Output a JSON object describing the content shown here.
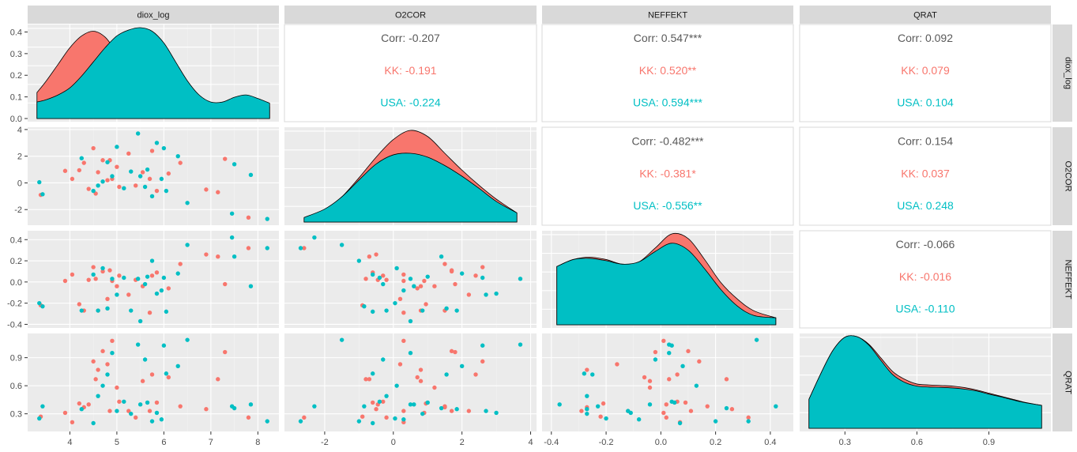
{
  "colors": {
    "panel_bg": "#EBEBEB",
    "grid_major": "#FFFFFF",
    "strip_bg": "#D9D9D9",
    "corr_overall": "#595959",
    "KK": "#F8766D",
    "USA": "#00BFC4",
    "density_stroke": "#000000"
  },
  "strips": {
    "col": [
      "diox_log",
      "O2COR",
      "NEFFEKT",
      "QRAT"
    ],
    "row": [
      "diox_log",
      "O2COR",
      "NEFFEKT",
      "QRAT"
    ]
  },
  "axes": {
    "x_ticks": [
      [
        "4",
        "5",
        "6",
        "7",
        "8"
      ],
      [
        "-2",
        "0",
        "2",
        "4"
      ],
      [
        "-0.4",
        "-0.2",
        "0.0",
        "0.2",
        "0.4"
      ],
      [
        "0.3",
        "0.6",
        "0.9"
      ]
    ],
    "y_ticks": [
      [
        "0.0",
        "0.1",
        "0.2",
        "0.3",
        "0.4"
      ],
      [
        "-2",
        "0",
        "2",
        "4"
      ],
      [
        "-0.4",
        "-0.2",
        "0.0",
        "0.2",
        "0.4"
      ],
      [
        "0.3",
        "0.6",
        "0.9"
      ]
    ]
  },
  "chart_data": {
    "type": "scatter",
    "variables": [
      "diox_log",
      "O2COR",
      "NEFFEKT",
      "QRAT"
    ],
    "groups": [
      "KK",
      "USA"
    ],
    "ranges": [
      [
        3.3,
        8.25
      ],
      [
        -2.9,
        3.9
      ],
      [
        -0.4,
        0.45
      ],
      [
        0.15,
        1.12
      ]
    ],
    "correlations": {
      "0-1": {
        "Corr": "Corr: -0.207",
        "KK": "KK: -0.191",
        "USA": "USA: -0.224"
      },
      "0-2": {
        "Corr": "Corr: 0.547***",
        "KK": "KK: 0.520**",
        "USA": "USA: 0.594***"
      },
      "0-3": {
        "Corr": "Corr: 0.092",
        "KK": "KK: 0.079",
        "USA": "USA: 0.104"
      },
      "1-2": {
        "Corr": "Corr: -0.482***",
        "KK": "KK: -0.381*",
        "USA": "USA: -0.556**"
      },
      "1-3": {
        "Corr": "Corr: 0.154",
        "KK": "KK: 0.037",
        "USA": "USA: 0.248"
      },
      "2-3": {
        "Corr": "Corr: -0.066",
        "KK": "KK: -0.016",
        "USA": "USA: -0.110"
      }
    },
    "densities": {
      "diox_log": {
        "x": [
          3.3,
          3.5,
          3.75,
          4.0,
          4.25,
          4.5,
          4.75,
          5.0,
          5.25,
          5.5,
          5.75,
          6.0,
          6.25,
          6.5,
          6.75,
          7.0,
          7.25,
          7.5,
          7.75,
          8.0,
          8.25
        ],
        "KK": [
          0.11,
          0.16,
          0.23,
          0.3,
          0.35,
          0.37,
          0.345,
          0.28,
          0.22,
          0.17,
          0.14,
          0.11,
          0.08,
          0.06,
          0.055,
          0.06,
          0.07,
          0.08,
          0.075,
          0.06,
          0.05
        ],
        "USA": [
          0.07,
          0.08,
          0.1,
          0.13,
          0.18,
          0.24,
          0.3,
          0.35,
          0.375,
          0.385,
          0.37,
          0.32,
          0.24,
          0.16,
          0.1,
          0.07,
          0.07,
          0.09,
          0.1,
          0.085,
          0.065
        ]
      },
      "O2COR": {
        "x": [
          -2.6,
          -2.0,
          -1.5,
          -1.0,
          -0.5,
          0.0,
          0.5,
          1.0,
          1.5,
          2.0,
          2.5,
          3.0,
          3.6
        ],
        "KK": [
          0.05,
          0.15,
          0.33,
          0.58,
          0.85,
          1.08,
          1.2,
          1.12,
          0.9,
          0.68,
          0.48,
          0.3,
          0.12
        ],
        "USA": [
          0.06,
          0.17,
          0.33,
          0.55,
          0.76,
          0.88,
          0.9,
          0.85,
          0.74,
          0.6,
          0.44,
          0.27,
          0.12
        ]
      },
      "NEFFEKT": {
        "x": [
          -0.38,
          -0.32,
          -0.26,
          -0.2,
          -0.14,
          -0.08,
          -0.02,
          0.04,
          0.1,
          0.16,
          0.22,
          0.28,
          0.34,
          0.42
        ],
        "KK": [
          0.5,
          0.56,
          0.58,
          0.56,
          0.52,
          0.54,
          0.66,
          0.78,
          0.74,
          0.56,
          0.36,
          0.22,
          0.12,
          0.06
        ],
        "USA": [
          0.5,
          0.56,
          0.57,
          0.55,
          0.52,
          0.54,
          0.63,
          0.7,
          0.64,
          0.48,
          0.3,
          0.16,
          0.08,
          0.06
        ]
      },
      "QRAT": {
        "x": [
          0.15,
          0.2,
          0.25,
          0.3,
          0.35,
          0.4,
          0.45,
          0.5,
          0.55,
          0.6,
          0.65,
          0.7,
          0.75,
          0.8,
          0.85,
          0.9,
          0.95,
          1.0,
          1.05,
          1.12
        ],
        "KK": [
          0.95,
          1.8,
          2.55,
          2.98,
          3.0,
          2.75,
          2.3,
          1.85,
          1.6,
          1.45,
          1.42,
          1.4,
          1.38,
          1.33,
          1.25,
          1.15,
          1.05,
          0.95,
          0.85,
          0.75
        ],
        "USA": [
          0.95,
          1.8,
          2.55,
          2.98,
          3.0,
          2.72,
          2.22,
          1.75,
          1.5,
          1.38,
          1.35,
          1.34,
          1.32,
          1.28,
          1.22,
          1.12,
          1.03,
          0.93,
          0.84,
          0.75
        ]
      }
    },
    "points": [
      {
        "g": "KK",
        "v": [
          3.38,
          -0.9,
          -0.22,
          0.27
        ]
      },
      {
        "g": "KK",
        "v": [
          3.9,
          0.9,
          0.01,
          0.31
        ]
      },
      {
        "g": "KK",
        "v": [
          4.05,
          0.3,
          0.07,
          0.21
        ]
      },
      {
        "g": "KK",
        "v": [
          4.2,
          0.95,
          -0.21,
          0.41
        ]
      },
      {
        "g": "KK",
        "v": [
          4.3,
          1.5,
          -0.27,
          0.37
        ]
      },
      {
        "g": "KK",
        "v": [
          4.4,
          -0.45,
          0.02,
          0.4
        ]
      },
      {
        "g": "KK",
        "v": [
          4.5,
          2.6,
          0.14,
          0.86
        ]
      },
      {
        "g": "KK",
        "v": [
          4.55,
          -0.8,
          0.03,
          0.67
        ]
      },
      {
        "g": "KK",
        "v": [
          4.6,
          0.8,
          -0.27,
          0.77
        ]
      },
      {
        "g": "KK",
        "v": [
          4.7,
          1.7,
          0.1,
          0.97
        ]
      },
      {
        "g": "KK",
        "v": [
          4.8,
          0.2,
          -0.16,
          0.83
        ]
      },
      {
        "g": "KK",
        "v": [
          4.85,
          1.7,
          0.11,
          0.33
        ]
      },
      {
        "g": "KK",
        "v": [
          4.9,
          0.3,
          0.01,
          1.08
        ]
      },
      {
        "g": "KK",
        "v": [
          5.0,
          1.2,
          -0.04,
          0.58
        ]
      },
      {
        "g": "KK",
        "v": [
          5.05,
          -0.3,
          0.06,
          0.43
        ]
      },
      {
        "g": "KK",
        "v": [
          5.25,
          2.2,
          -0.12,
          0.33
        ]
      },
      {
        "g": "KK",
        "v": [
          5.4,
          -0.2,
          0.02,
          0.26
        ]
      },
      {
        "g": "KK",
        "v": [
          5.55,
          0.8,
          -0.04,
          0.65
        ]
      },
      {
        "g": "KK",
        "v": [
          5.7,
          0.3,
          -0.29,
          0.33
        ]
      },
      {
        "g": "KK",
        "v": [
          5.75,
          2.4,
          0.06,
          0.72
        ]
      },
      {
        "g": "KK",
        "v": [
          5.85,
          -0.6,
          0.09,
          0.42
        ]
      },
      {
        "g": "KK",
        "v": [
          6.1,
          0.7,
          -0.06,
          0.69
        ]
      },
      {
        "g": "KK",
        "v": [
          6.35,
          1.5,
          0.17,
          0.38
        ]
      },
      {
        "g": "KK",
        "v": [
          6.9,
          -0.5,
          0.26,
          0.35
        ]
      },
      {
        "g": "KK",
        "v": [
          7.15,
          -0.7,
          0.24,
          0.67
        ]
      },
      {
        "g": "KK",
        "v": [
          7.3,
          1.8,
          -0.02,
          0.96
        ]
      },
      {
        "g": "KK",
        "v": [
          7.8,
          -2.6,
          0.32,
          0.26
        ]
      },
      {
        "g": "USA",
        "v": [
          3.42,
          -0.85,
          -0.23,
          0.38
        ]
      },
      {
        "g": "USA",
        "v": [
          3.35,
          0.05,
          -0.2,
          0.25
        ]
      },
      {
        "g": "USA",
        "v": [
          4.25,
          1.85,
          -0.27,
          0.35
        ]
      },
      {
        "g": "USA",
        "v": [
          4.5,
          -0.6,
          0.07,
          0.2
        ]
      },
      {
        "g": "USA",
        "v": [
          4.6,
          -0.2,
          -0.27,
          0.49
        ]
      },
      {
        "g": "USA",
        "v": [
          4.7,
          0.1,
          0.13,
          0.6
        ]
      },
      {
        "g": "USA",
        "v": [
          4.8,
          1.55,
          -0.25,
          0.72
        ]
      },
      {
        "g": "USA",
        "v": [
          4.9,
          0.5,
          0.03,
          0.95
        ]
      },
      {
        "g": "USA",
        "v": [
          5.0,
          2.7,
          -0.12,
          0.33
        ]
      },
      {
        "g": "USA",
        "v": [
          5.15,
          -0.4,
          0.04,
          0.43
        ]
      },
      {
        "g": "USA",
        "v": [
          5.3,
          0.85,
          -0.27,
          0.3
        ]
      },
      {
        "g": "USA",
        "v": [
          5.45,
          3.7,
          0.03,
          1.04
        ]
      },
      {
        "g": "USA",
        "v": [
          5.5,
          0.5,
          -0.37,
          0.4
        ]
      },
      {
        "g": "USA",
        "v": [
          5.6,
          -0.3,
          -0.02,
          0.88
        ]
      },
      {
        "g": "USA",
        "v": [
          5.65,
          1.0,
          0.05,
          0.42
        ]
      },
      {
        "g": "USA",
        "v": [
          5.75,
          -1.0,
          0.2,
          0.22
        ]
      },
      {
        "g": "USA",
        "v": [
          5.85,
          3.0,
          -0.11,
          0.31
        ]
      },
      {
        "g": "USA",
        "v": [
          5.95,
          0.3,
          -0.08,
          0.24
        ]
      },
      {
        "g": "USA",
        "v": [
          6.0,
          2.6,
          0.04,
          1.03
        ]
      },
      {
        "g": "USA",
        "v": [
          6.05,
          -0.6,
          -0.28,
          0.73
        ]
      },
      {
        "g": "USA",
        "v": [
          6.3,
          2.0,
          0.08,
          0.81
        ]
      },
      {
        "g": "USA",
        "v": [
          6.5,
          -1.5,
          0.35,
          1.09
        ]
      },
      {
        "g": "USA",
        "v": [
          7.45,
          -2.3,
          0.42,
          0.38
        ]
      },
      {
        "g": "USA",
        "v": [
          7.5,
          1.4,
          0.24,
          0.36
        ]
      },
      {
        "g": "USA",
        "v": [
          7.85,
          0.6,
          -0.04,
          0.4
        ]
      },
      {
        "g": "USA",
        "v": [
          8.2,
          -2.7,
          0.32,
          0.22
        ]
      }
    ]
  }
}
